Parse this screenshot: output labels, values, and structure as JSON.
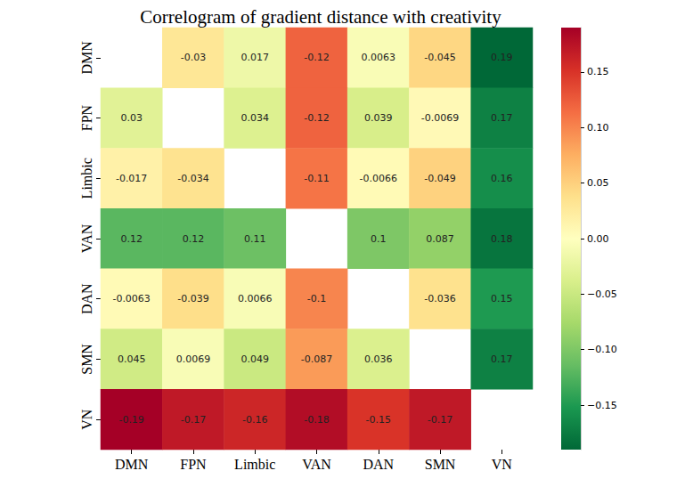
{
  "chart_data": {
    "type": "heatmap",
    "title": "Correlogram of gradient distance with creativity",
    "x_categories": [
      "DMN",
      "FPN",
      "Limbic",
      "VAN",
      "DAN",
      "SMN",
      "VN"
    ],
    "y_categories": [
      "DMN",
      "FPN",
      "Limbic",
      "VAN",
      "DAN",
      "SMN",
      "VN"
    ],
    "cells": [
      [
        null,
        -0.03,
        0.017,
        -0.12,
        0.0063,
        -0.045,
        0.19
      ],
      [
        0.03,
        null,
        0.034,
        -0.12,
        0.039,
        -0.0069,
        0.17
      ],
      [
        -0.017,
        -0.034,
        null,
        -0.11,
        -0.0066,
        -0.049,
        0.16
      ],
      [
        0.12,
        0.12,
        0.11,
        null,
        0.1,
        0.087,
        0.18
      ],
      [
        -0.0063,
        -0.039,
        0.0066,
        -0.1,
        null,
        -0.036,
        0.15
      ],
      [
        0.045,
        0.0069,
        0.049,
        -0.087,
        0.036,
        null,
        0.17
      ],
      [
        -0.19,
        -0.17,
        -0.16,
        -0.18,
        -0.15,
        -0.17,
        null
      ]
    ],
    "color": "RdYlGn",
    "colorbar_lim": [
      -0.19,
      0.19
    ],
    "colorbar_ticks": [
      {
        "value": -0.15,
        "label": "−0.15"
      },
      {
        "value": -0.1,
        "label": "−0.10"
      },
      {
        "value": -0.05,
        "label": "−0.05"
      },
      {
        "value": 0,
        "label": "0.00"
      },
      0.05,
      {
        "value": 0.1,
        "label": "0.10"
      },
      0.15
    ],
    "data_labels": true
  }
}
